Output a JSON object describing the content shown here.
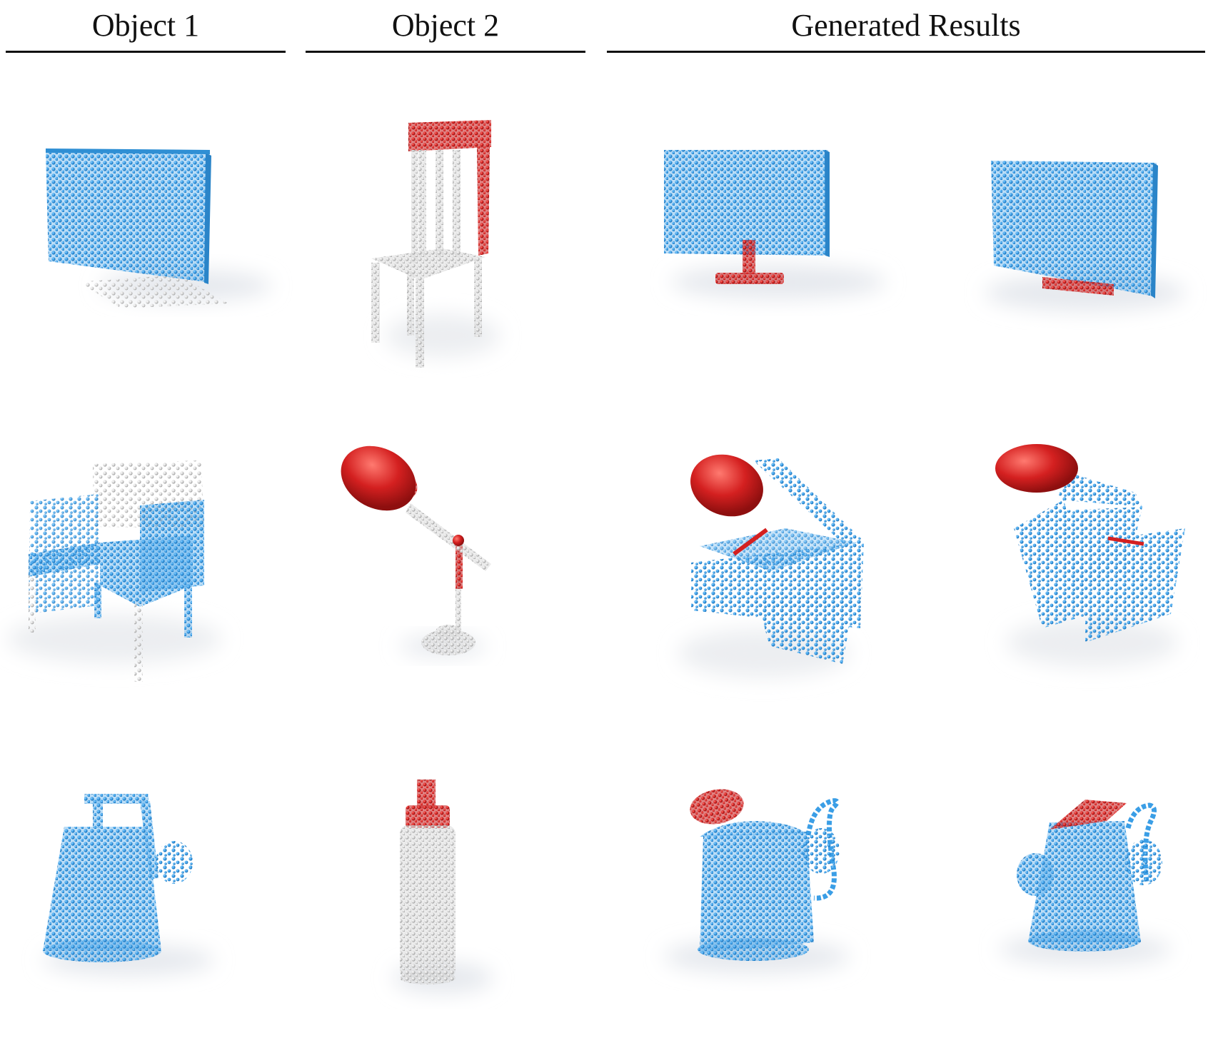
{
  "headers": {
    "object1": "Object 1",
    "object2": "Object 2",
    "generated": "Generated Results"
  },
  "colors": {
    "part_highlight": "#d42020",
    "part_blue": "#3a9ee6",
    "part_gray": "#d6d6d6",
    "shadow": "#e9ebee",
    "background": "#ffffff"
  },
  "rows": [
    {
      "object1": "monitor",
      "object2": "chair",
      "results": [
        "monitor",
        "monitor"
      ]
    },
    {
      "object1": "armchair",
      "object2": "lamp",
      "results": [
        "lamp-hybrid",
        "lamp-hybrid"
      ]
    },
    {
      "object1": "kettle",
      "object2": "bottle",
      "results": [
        "kettle-hybrid",
        "kettle-hybrid"
      ]
    }
  ]
}
